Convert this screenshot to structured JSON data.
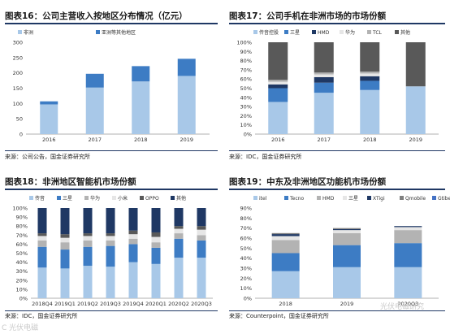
{
  "chart_data": [
    {
      "id": "p1",
      "title": "图表16：公司主营收入按地区分布情况（亿元）",
      "source": "来源：公司公告，国金证券研究所",
      "type": "bar",
      "stacked": true,
      "categories": [
        "2016",
        "2017",
        "2018",
        "2019"
      ],
      "series": [
        {
          "name": "非洲",
          "color": "#a8c8e8",
          "values": [
            97,
            152,
            172,
            190
          ]
        },
        {
          "name": "亚洲等其他地区",
          "color": "#3d7cc4",
          "values": [
            10,
            45,
            50,
            56
          ]
        }
      ],
      "ylim": [
        0,
        300
      ],
      "yticks": [
        0,
        50,
        100,
        150,
        200,
        250,
        300
      ],
      "tick_suffix": "",
      "legend": "top-left",
      "grid": false
    },
    {
      "id": "p2",
      "title": "图表17：公司手机在非洲市场的市场份额",
      "source": "来源：IDC，国金证券研究所",
      "type": "bar",
      "stacked": true,
      "categories": [
        "2016",
        "2017",
        "2018",
        "2019"
      ],
      "series": [
        {
          "name": "传音控股",
          "color": "#a8c8e8",
          "values": [
            35,
            45,
            48,
            52
          ]
        },
        {
          "name": "三星",
          "color": "#3d7cc4",
          "values": [
            15,
            11,
            10,
            0
          ]
        },
        {
          "name": "HMD",
          "color": "#1f3864",
          "values": [
            4,
            6,
            5,
            0
          ]
        },
        {
          "name": "华为",
          "color": "#e6e6e6",
          "values": [
            3,
            3,
            3,
            0
          ]
        },
        {
          "name": "TCL",
          "color": "#b3b3b3",
          "values": [
            2,
            2,
            2,
            0
          ]
        },
        {
          "name": "其他",
          "color": "#595959",
          "values": [
            41,
            33,
            32,
            48
          ]
        }
      ],
      "ylim": [
        0,
        100
      ],
      "yticks": [
        0,
        10,
        20,
        30,
        40,
        50,
        60,
        70,
        80,
        90,
        100
      ],
      "tick_suffix": "%",
      "legend": "top",
      "grid": false
    },
    {
      "id": "p3",
      "title": "图表18：非洲地区智能机市场份额",
      "source": "来源：IDC，国金证券研究所",
      "type": "bar",
      "stacked": true,
      "categories": [
        "2018Q4",
        "2019Q1",
        "2019Q2",
        "2019Q3",
        "2019Q4",
        "2020Q1",
        "2020Q2",
        "2020Q3"
      ],
      "series": [
        {
          "name": "传音",
          "color": "#a8c8e8",
          "values": [
            34,
            33,
            36,
            35,
            40,
            38,
            45,
            45
          ]
        },
        {
          "name": "三星",
          "color": "#3d7cc4",
          "values": [
            23,
            21,
            21,
            23,
            20,
            18,
            21,
            19
          ]
        },
        {
          "name": "华为",
          "color": "#b3b3b3",
          "values": [
            7,
            8,
            7,
            6,
            6,
            6,
            6,
            6
          ]
        },
        {
          "name": "小米",
          "color": "#e6e6e6",
          "values": [
            5,
            5,
            5,
            5,
            5,
            6,
            5,
            6
          ]
        },
        {
          "name": "OPPO",
          "color": "#595959",
          "values": [
            3,
            4,
            3,
            3,
            4,
            5,
            3,
            4
          ]
        },
        {
          "name": "其他",
          "color": "#1f3864",
          "values": [
            28,
            29,
            28,
            28,
            25,
            27,
            20,
            20
          ]
        }
      ],
      "ylim": [
        0,
        100
      ],
      "yticks": [
        0,
        10,
        20,
        30,
        40,
        50,
        60,
        70,
        80,
        90,
        100
      ],
      "tick_suffix": "%",
      "legend": "top",
      "grid": false
    },
    {
      "id": "p4",
      "title": "图表19：中东及非洲地区功能机市场份额",
      "source": "来源：Counterpoint，国金证券研究所",
      "type": "bar",
      "stacked": true,
      "categories": [
        "2018",
        "2019",
        "2020Q3"
      ],
      "series": [
        {
          "name": "itel",
          "color": "#a8c8e8",
          "values": [
            27,
            31,
            31
          ]
        },
        {
          "name": "Tecno",
          "color": "#3d7cc4",
          "values": [
            18,
            22,
            24
          ]
        },
        {
          "name": "HMD",
          "color": "#b3b3b3",
          "values": [
            13,
            12,
            13
          ]
        },
        {
          "name": "三星",
          "color": "#e6e6e6",
          "values": [
            4,
            3,
            3
          ]
        },
        {
          "name": "XTigi",
          "color": "#1f3864",
          "values": [
            2,
            1,
            1
          ]
        },
        {
          "name": "Qmobile",
          "color": "#7f7f7f",
          "values": [
            1,
            1,
            0
          ]
        },
        {
          "name": "Gtibe",
          "color": "#4472c4",
          "values": [
            0,
            0,
            0
          ]
        }
      ],
      "ylim": [
        0,
        90
      ],
      "yticks": [
        0,
        10,
        20,
        30,
        40,
        50,
        60,
        70,
        80,
        90
      ],
      "tick_suffix": "%",
      "legend": "top",
      "grid": false
    }
  ],
  "watermarks": [
    "C 光伏电磁",
    "光伏电磁研究"
  ]
}
